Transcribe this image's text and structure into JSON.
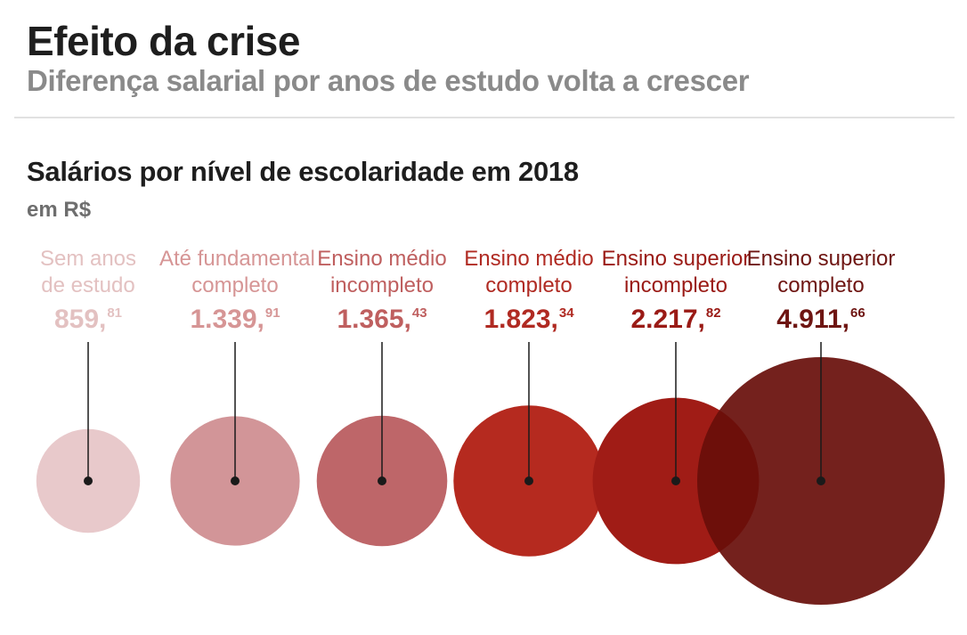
{
  "header": {
    "title": "Efeito da crise",
    "subtitle": "Diferença salarial por anos de estudo volta a crescer"
  },
  "chart_data": {
    "type": "bubble",
    "title": "Salários por nível de escolaridade em 2018",
    "unit": "em R$",
    "categories": [
      {
        "label_lines": [
          "Sem anos",
          "de estudo"
        ],
        "value": 859.81,
        "value_int": "859,",
        "value_dec": "81",
        "label_color": "#e3c1c1",
        "value_color": "#e3c1c1",
        "fill": "#e8c9cb",
        "fill_opacity": 1
      },
      {
        "label_lines": [
          "Até fundamental",
          "completo"
        ],
        "value": 1339.91,
        "value_int": "1.339,",
        "value_dec": "91",
        "label_color": "#d69595",
        "value_color": "#d69595",
        "fill": "#d29598",
        "fill_opacity": 1
      },
      {
        "label_lines": [
          "Ensino médio",
          "incompleto"
        ],
        "value": 1365.43,
        "value_int": "1.365,",
        "value_dec": "43",
        "label_color": "#bf5f5f",
        "value_color": "#bf5f5f",
        "fill": "#be6669",
        "fill_opacity": 1
      },
      {
        "label_lines": [
          "Ensino médio",
          "completo"
        ],
        "value": 1823.34,
        "value_int": "1.823,",
        "value_dec": "34",
        "label_color": "#b02a22",
        "value_color": "#b02a22",
        "fill": "#b52a1f",
        "fill_opacity": 1
      },
      {
        "label_lines": [
          "Ensino superior",
          "incompleto"
        ],
        "value": 2217.82,
        "value_int": "2.217,",
        "value_dec": "82",
        "label_color": "#9a1a15",
        "value_color": "#9a1a15",
        "fill": "#a01c16",
        "fill_opacity": 1
      },
      {
        "label_lines": [
          "Ensino superior",
          "completo"
        ],
        "value": 4911.66,
        "value_int": "4.911,",
        "value_dec": "66",
        "label_color": "#6e1512",
        "value_color": "#6e1512",
        "fill": "#680e0a",
        "fill_opacity": 0.92
      }
    ]
  }
}
